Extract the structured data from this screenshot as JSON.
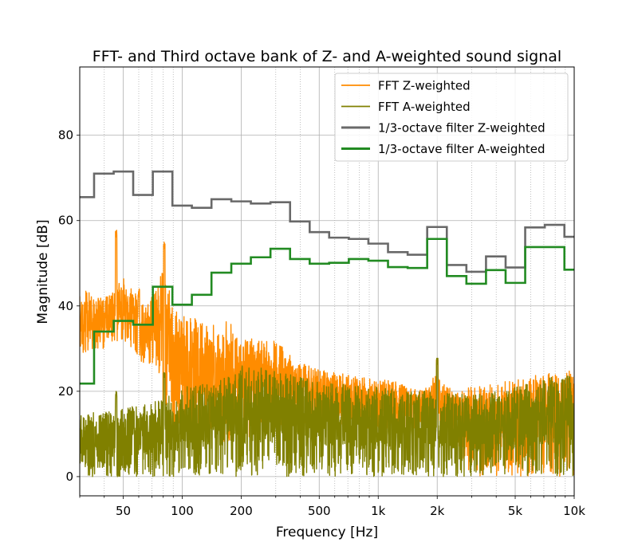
{
  "chart_data": {
    "type": "line",
    "title": "FFT- and Third octave bank of Z- and A-weighted sound signal",
    "xlabel": "Frequency [Hz]",
    "ylabel": "Magnitude [dB]",
    "xscale": "log",
    "xlim": [
      30,
      10000
    ],
    "ylim": [
      -4.5,
      96
    ],
    "grid": "major solid, minor dotted on x",
    "legend_position": "upper-right",
    "x_ticks": [
      {
        "value": 50,
        "label": "50"
      },
      {
        "value": 100,
        "label": "100"
      },
      {
        "value": 200,
        "label": "200"
      },
      {
        "value": 500,
        "label": "500"
      },
      {
        "value": 1000,
        "label": "1k"
      },
      {
        "value": 2000,
        "label": "2k"
      },
      {
        "value": 5000,
        "label": "5k"
      },
      {
        "value": 10000,
        "label": "10k"
      }
    ],
    "y_ticks": [
      {
        "value": 0,
        "label": "0"
      },
      {
        "value": 20,
        "label": "20"
      },
      {
        "value": 40,
        "label": "40"
      },
      {
        "value": 60,
        "label": "60"
      },
      {
        "value": 80,
        "label": "80"
      }
    ],
    "series": [
      {
        "name": "FFT Z-weighted",
        "style": "thin-noisy",
        "color": "#ff8c00",
        "envelope_x": [
          30,
          35,
          40,
          45,
          50,
          55,
          60,
          65,
          70,
          75,
          80,
          90,
          100,
          120,
          150,
          180,
          200,
          250,
          300,
          350,
          400,
          500,
          700,
          1000,
          1300,
          1700,
          1950,
          2000,
          2100,
          2500,
          3000,
          4000,
          5000,
          7000,
          10000
        ],
        "envelope_top": [
          46,
          42,
          42,
          44,
          47,
          44,
          42,
          40,
          43,
          44,
          50,
          40,
          38,
          37,
          37,
          36,
          33,
          32,
          32,
          29,
          27,
          25,
          24,
          23,
          22,
          20,
          24,
          26,
          22,
          20,
          21,
          22,
          23,
          24,
          25
        ],
        "envelope_bottom": [
          28,
          30,
          30,
          31,
          32,
          30,
          28,
          24,
          26,
          26,
          14,
          12,
          10,
          8,
          8,
          8,
          8,
          10,
          12,
          12,
          12,
          12,
          12,
          11,
          11,
          11,
          12,
          14,
          12,
          8,
          0,
          0,
          0,
          0,
          0
        ],
        "peaks": [
          {
            "x": 46,
            "y": 58
          },
          {
            "x": 81,
            "y": 55
          },
          {
            "x": 60,
            "y": 44
          },
          {
            "x": 2000,
            "y": 28
          }
        ]
      },
      {
        "name": "FFT A-weighted",
        "style": "thin-noisy",
        "color": "#808000",
        "envelope_x": [
          30,
          50,
          80,
          100,
          150,
          200,
          300,
          500,
          1000,
          2000,
          3000,
          5000,
          7000,
          10000
        ],
        "envelope_top": [
          15,
          16,
          18,
          21,
          22,
          26,
          25,
          22,
          21,
          20,
          19,
          21,
          23,
          24
        ],
        "envelope_bottom": [
          0,
          0,
          0,
          0,
          0,
          0,
          0,
          0,
          0,
          0,
          0,
          0,
          0,
          0
        ],
        "peaks": [
          {
            "x": 46,
            "y": 20
          },
          {
            "x": 81,
            "y": 25
          },
          {
            "x": 2000,
            "y": 28
          }
        ]
      },
      {
        "name": "1/3-octave filter Z-weighted",
        "style": "step",
        "color": "#696969",
        "edges": [
          30,
          35.5,
          44.7,
          56.2,
          70.8,
          89.1,
          112,
          141,
          178,
          224,
          282,
          355,
          447,
          562,
          708,
          891,
          1122,
          1413,
          1778,
          2239,
          2818,
          3548,
          4467,
          5623,
          7079,
          8913,
          10000
        ],
        "values": [
          65.5,
          71,
          71.5,
          66,
          71.5,
          63.5,
          63,
          65,
          64.5,
          64,
          64.3,
          59.8,
          57.3,
          56,
          55.7,
          54.6,
          52.6,
          52,
          58.5,
          49.6,
          48,
          51.6,
          49,
          58.4,
          59,
          56.2
        ]
      },
      {
        "name": "1/3-octave filter A-weighted",
        "style": "step",
        "color": "#228b22",
        "edges": [
          30,
          35.5,
          44.7,
          56.2,
          70.8,
          89.1,
          112,
          141,
          178,
          224,
          282,
          355,
          447,
          562,
          708,
          891,
          1122,
          1413,
          1778,
          2239,
          2818,
          3548,
          4467,
          5623,
          7079,
          8913,
          10000
        ],
        "values": [
          21.8,
          34,
          36.5,
          35.6,
          44.5,
          40.3,
          42.6,
          47.8,
          49.9,
          51.4,
          53.4,
          51,
          49.9,
          50.1,
          51,
          50.6,
          49.1,
          48.9,
          55.7,
          47,
          45.2,
          48.4,
          45.4,
          53.8,
          53.8,
          48.5
        ]
      }
    ]
  }
}
